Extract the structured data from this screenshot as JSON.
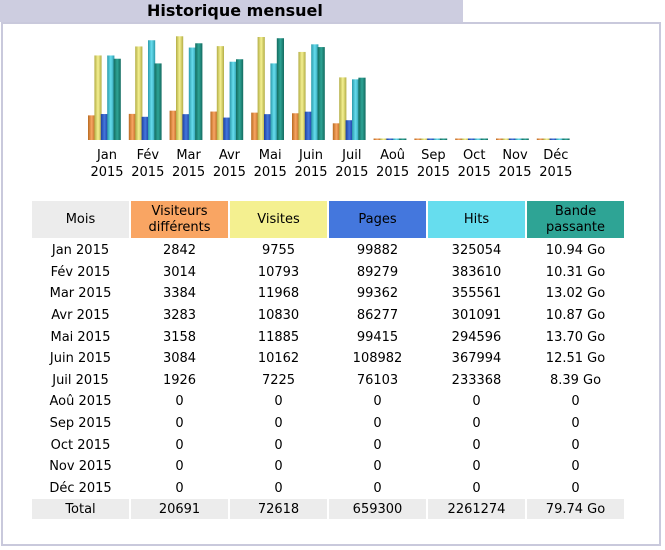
{
  "title": "Historique mensuel",
  "colors": {
    "visitors": "#f9a563",
    "visits": "#f4f090",
    "pages": "#4477dd",
    "hits": "#66ddee",
    "bandwidth": "#2ea495"
  },
  "chart_data": {
    "type": "bar",
    "categories": [
      "Jan",
      "Fév",
      "Mar",
      "Avr",
      "Mai",
      "Juin",
      "Juil",
      "Aoû",
      "Sep",
      "Oct",
      "Nov",
      "Déc"
    ],
    "years": [
      "2015",
      "2015",
      "2015",
      "2015",
      "2015",
      "2015",
      "2015",
      "2015",
      "2015",
      "2015",
      "2015",
      "2015"
    ],
    "series": [
      {
        "name": "Visiteurs différents",
        "values": [
          2842,
          3014,
          3384,
          3283,
          3158,
          3084,
          1926,
          0,
          0,
          0,
          0,
          0
        ]
      },
      {
        "name": "Visites",
        "values": [
          9755,
          10793,
          11968,
          10830,
          11885,
          10162,
          7225,
          0,
          0,
          0,
          0,
          0
        ]
      },
      {
        "name": "Pages",
        "values": [
          99882,
          89279,
          99362,
          86277,
          99415,
          108982,
          76103,
          0,
          0,
          0,
          0,
          0
        ]
      },
      {
        "name": "Hits",
        "values": [
          325054,
          383610,
          355561,
          301091,
          294596,
          367994,
          233368,
          0,
          0,
          0,
          0,
          0
        ]
      },
      {
        "name": "Bande passante",
        "values": [
          10.94,
          10.31,
          13.02,
          10.87,
          13.7,
          12.51,
          8.39,
          0,
          0,
          0,
          0,
          0
        ]
      }
    ]
  },
  "table": {
    "headers": {
      "mois": "Mois",
      "visitors": "Visiteurs différents",
      "visits": "Visites",
      "pages": "Pages",
      "hits": "Hits",
      "bandwidth": "Bande passante"
    },
    "rows": [
      [
        "Jan 2015",
        "2842",
        "9755",
        "99882",
        "325054",
        "10.94 Go"
      ],
      [
        "Fév 2015",
        "3014",
        "10793",
        "89279",
        "383610",
        "10.31 Go"
      ],
      [
        "Mar 2015",
        "3384",
        "11968",
        "99362",
        "355561",
        "13.02 Go"
      ],
      [
        "Avr 2015",
        "3283",
        "10830",
        "86277",
        "301091",
        "10.87 Go"
      ],
      [
        "Mai 2015",
        "3158",
        "11885",
        "99415",
        "294596",
        "13.70 Go"
      ],
      [
        "Juin 2015",
        "3084",
        "10162",
        "108982",
        "367994",
        "12.51 Go"
      ],
      [
        "Juil 2015",
        "1926",
        "7225",
        "76103",
        "233368",
        "8.39 Go"
      ],
      [
        "Aoû 2015",
        "0",
        "0",
        "0",
        "0",
        "0"
      ],
      [
        "Sep 2015",
        "0",
        "0",
        "0",
        "0",
        "0"
      ],
      [
        "Oct 2015",
        "0",
        "0",
        "0",
        "0",
        "0"
      ],
      [
        "Nov 2015",
        "0",
        "0",
        "0",
        "0",
        "0"
      ],
      [
        "Déc 2015",
        "0",
        "0",
        "0",
        "0",
        "0"
      ]
    ],
    "total": [
      "Total",
      "20691",
      "72618",
      "659300",
      "2261274",
      "79.74 Go"
    ]
  }
}
